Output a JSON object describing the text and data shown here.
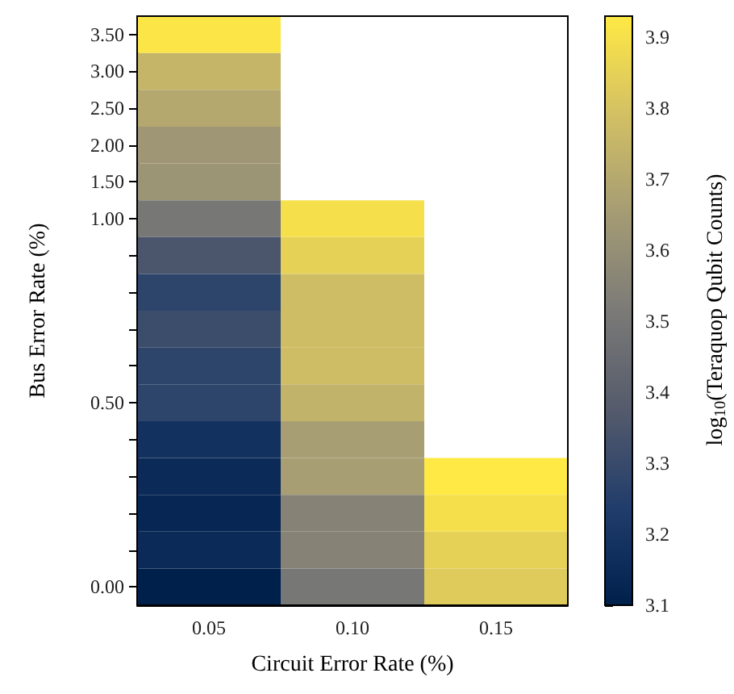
{
  "chart_data": {
    "type": "heatmap",
    "xlabel": "Circuit Error Rate (%)",
    "ylabel": "Bus Error Rate (%)",
    "clabel": "log$_{10}$(Teraquop Qubit Counts)",
    "categories": [
      "0.05",
      "0.10",
      "0.15"
    ],
    "y_categories": [
      "3.50",
      "3.00",
      "2.50",
      "2.00",
      "1.50",
      "1.00",
      null,
      null,
      null,
      null,
      "0.50",
      null,
      null,
      null,
      null,
      "0.00"
    ],
    "cells": [
      [
        3.92,
        null,
        null
      ],
      [
        3.75,
        null,
        null
      ],
      [
        3.7,
        null,
        null
      ],
      [
        3.63,
        null,
        null
      ],
      [
        3.62,
        null,
        null
      ],
      [
        3.5,
        3.9,
        null
      ],
      [
        3.35,
        3.85,
        null
      ],
      [
        3.27,
        3.78,
        null
      ],
      [
        3.31,
        3.78,
        null
      ],
      [
        3.27,
        3.78,
        null
      ],
      [
        3.27,
        3.74,
        null
      ],
      [
        3.18,
        3.66,
        null
      ],
      [
        3.15,
        3.66,
        3.94
      ],
      [
        3.13,
        3.55,
        3.9
      ],
      [
        3.15,
        3.55,
        3.85
      ],
      [
        3.1,
        3.5,
        3.83
      ]
    ],
    "clim": [
      3.1,
      3.93
    ],
    "cticks": [
      3.1,
      3.2,
      3.3,
      3.4,
      3.5,
      3.6,
      3.7,
      3.8,
      3.9
    ]
  }
}
